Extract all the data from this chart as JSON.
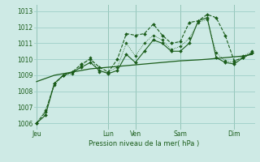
{
  "background_color": "#ceeae5",
  "grid_color": "#9ecec8",
  "line_color": "#1a5c1a",
  "title": "Pression niveau de la mer( hPa )",
  "ylabel_ticks": [
    1006,
    1007,
    1008,
    1009,
    1010,
    1011,
    1012,
    1013
  ],
  "ylim": [
    1005.6,
    1013.4
  ],
  "x_day_labels": [
    "Jeu",
    "Lun",
    "Ven",
    "Sam",
    "Dim"
  ],
  "x_day_positions": [
    0,
    8,
    11,
    16,
    22
  ],
  "xlim": [
    -0.3,
    24.3
  ],
  "series1_x": [
    0,
    1,
    2,
    3,
    4,
    5,
    6,
    7,
    8,
    9,
    10,
    11,
    12,
    13,
    14,
    15,
    16,
    17,
    18,
    19,
    20,
    21,
    22,
    23,
    24
  ],
  "series1_y": [
    1006.0,
    1006.7,
    1008.5,
    1009.0,
    1009.2,
    1009.7,
    1010.0,
    1009.5,
    1009.2,
    1010.0,
    1011.6,
    1011.5,
    1011.6,
    1012.2,
    1011.5,
    1011.0,
    1011.1,
    1012.3,
    1012.4,
    1012.8,
    1012.6,
    1011.5,
    1009.9,
    1010.1,
    1010.4
  ],
  "series2_x": [
    0,
    1,
    2,
    3,
    4,
    5,
    6,
    7,
    8,
    9,
    10,
    11,
    12,
    13,
    14,
    15,
    16,
    17,
    18,
    19,
    20,
    21,
    22,
    23,
    24
  ],
  "series2_y": [
    1006.0,
    1006.5,
    1008.5,
    1009.0,
    1009.2,
    1009.5,
    1009.8,
    1009.3,
    1009.1,
    1009.3,
    1010.3,
    1009.8,
    1010.5,
    1011.2,
    1011.0,
    1010.5,
    1010.5,
    1011.0,
    1012.4,
    1012.6,
    1010.1,
    1009.8,
    1009.7,
    1010.1,
    1010.4
  ],
  "series3_x": [
    0,
    1,
    2,
    3,
    4,
    5,
    6,
    7,
    8,
    9,
    10,
    11,
    12,
    13,
    14,
    15,
    16,
    17,
    18,
    19,
    20,
    21,
    22,
    23,
    24
  ],
  "series3_y": [
    1006.0,
    1006.8,
    1008.4,
    1009.0,
    1009.1,
    1009.6,
    1010.1,
    1009.2,
    1009.2,
    1009.5,
    1011.0,
    1010.2,
    1011.0,
    1011.5,
    1011.2,
    1010.6,
    1010.8,
    1011.3,
    1012.3,
    1012.5,
    1010.4,
    1009.9,
    1009.8,
    1010.2,
    1010.5
  ],
  "series4_x": [
    0,
    1,
    2,
    3,
    4,
    5,
    6,
    7,
    8,
    9,
    10,
    11,
    12,
    13,
    14,
    15,
    16,
    17,
    18,
    19,
    20,
    21,
    22,
    23,
    24
  ],
  "series4_y": [
    1008.6,
    1008.8,
    1009.0,
    1009.1,
    1009.2,
    1009.3,
    1009.4,
    1009.45,
    1009.5,
    1009.55,
    1009.6,
    1009.65,
    1009.7,
    1009.75,
    1009.8,
    1009.85,
    1009.9,
    1009.93,
    1009.96,
    1010.0,
    1010.05,
    1010.1,
    1010.15,
    1010.2,
    1010.3
  ]
}
